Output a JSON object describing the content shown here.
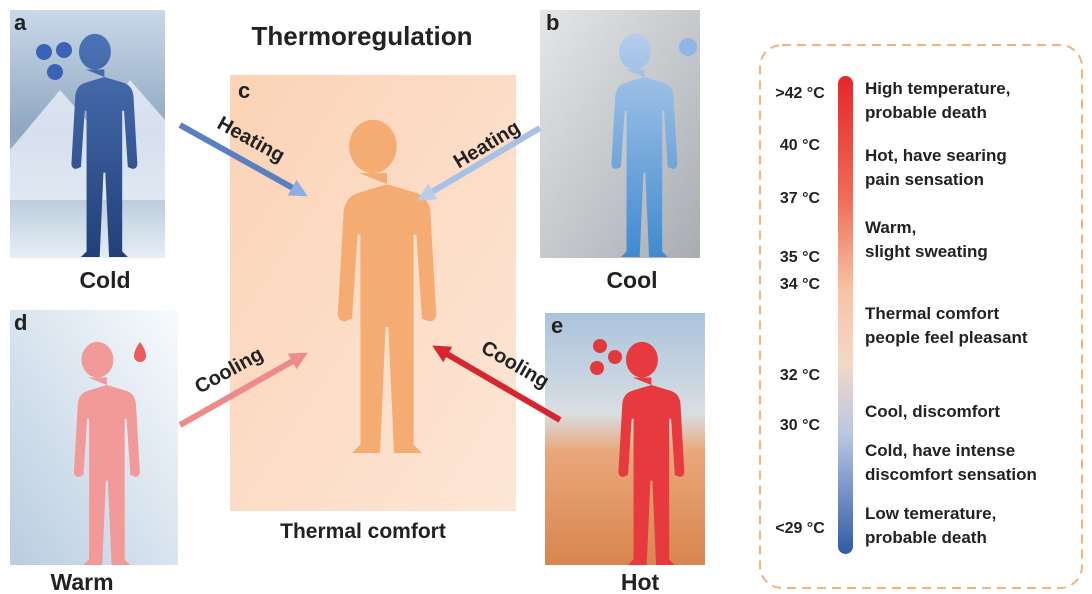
{
  "title": "Thermoregulation",
  "panels": [
    {
      "letter": "a",
      "caption": "Cold"
    },
    {
      "letter": "b",
      "caption": "Cool"
    },
    {
      "letter": "c",
      "caption": "Thermal comfort"
    },
    {
      "letter": "d",
      "caption": "Warm"
    },
    {
      "letter": "e",
      "caption": "Hot"
    }
  ],
  "arrows": [
    "Heating",
    "Heating",
    "Cooling",
    "Cooling"
  ],
  "scale": {
    "temperatures": [
      ">42 °C",
      "40 °C",
      "37 °C",
      "35 °C",
      "34 °C",
      "32 °C",
      "30 °C",
      "<29 °C"
    ],
    "descriptions": [
      [
        "High temperature,",
        "probable death"
      ],
      [
        "Hot, have searing",
        "pain sensation"
      ],
      [
        "Warm,",
        "slight sweating"
      ],
      [
        "Thermal comfort",
        "people feel pleasant"
      ],
      [
        "Cool, discomfort"
      ],
      [
        "Cold, have intense",
        "discomfort sensation"
      ],
      [
        "Low temerature,",
        "probable death"
      ]
    ]
  }
}
